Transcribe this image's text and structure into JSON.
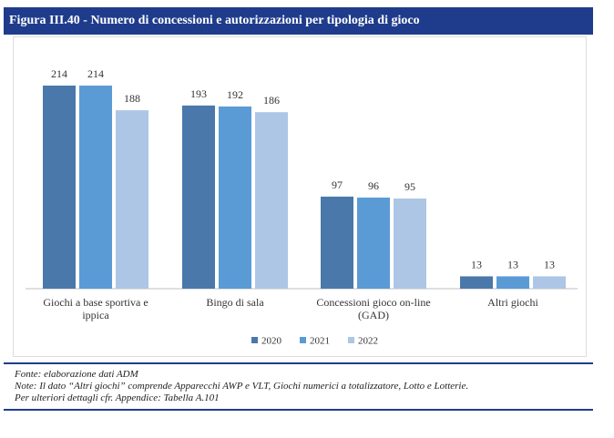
{
  "title": "Figura III.40 - Numero di concessioni e autorizzazioni per tipologia di gioco",
  "chart_data": {
    "type": "bar",
    "categories": [
      [
        "Giochi a base sportiva e",
        "ippica"
      ],
      [
        "Bingo di sala"
      ],
      [
        "Concessioni gioco on-line",
        "(GAD)"
      ],
      [
        "Altri giochi"
      ]
    ],
    "series": [
      {
        "name": "2020",
        "values": [
          214,
          193,
          97,
          13
        ],
        "color": "#4a78aa"
      },
      {
        "name": "2021",
        "values": [
          214,
          192,
          96,
          13
        ],
        "color": "#5b9bd5"
      },
      {
        "name": "2022",
        "values": [
          188,
          186,
          95,
          13
        ],
        "color": "#aec6e6"
      }
    ],
    "ylim": [
      0,
      214
    ],
    "grid": false,
    "legend": "bottom",
    "data_labels": true
  },
  "notes": [
    "Fonte: elaborazione dati ADM",
    "Note: Il dato “Altri giochi” comprende Apparecchi AWP e VLT, Giochi numerici a totalizzatore, Lotto e Lotterie.",
    "Per ulteriori dettagli cfr. Appendice: Tabella A.101"
  ]
}
